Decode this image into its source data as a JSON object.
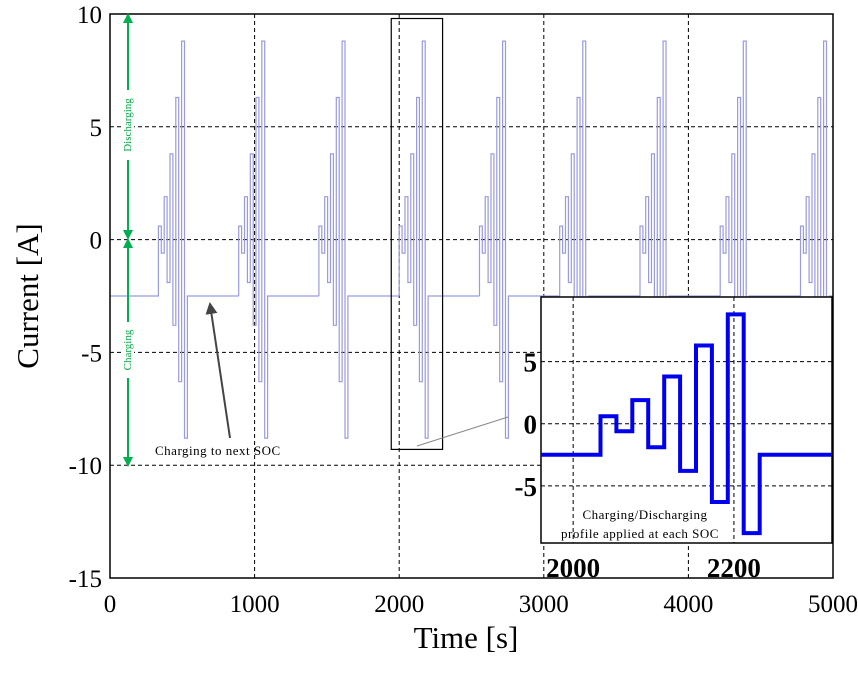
{
  "chart_data": [
    {
      "type": "line",
      "name": "main",
      "xlabel": "Time [s]",
      "ylabel": "Current [A]",
      "xlim": [
        0,
        5000
      ],
      "ylim": [
        -15,
        10
      ],
      "xticks": [
        0,
        1000,
        2000,
        3000,
        4000,
        5000
      ],
      "xtick_labels": [
        "0",
        "1000",
        "2000",
        "3000",
        "4000",
        "5000"
      ],
      "yticks": [
        10,
        5,
        0,
        -5,
        -10,
        -15
      ],
      "ytick_labels": [
        "10",
        "5",
        "0",
        "-5",
        "-10",
        "-15"
      ],
      "grid": true,
      "series_color": "#9a9ae0",
      "baseline_current": -2.5,
      "cycle_starts": [
        335,
        890,
        1445,
        2000,
        2555,
        3110,
        3665,
        4220,
        4775
      ],
      "step_duration": 20,
      "profile_levels": [
        0.6,
        -0.6,
        1.9,
        -1.9,
        3.8,
        -3.8,
        6.3,
        -6.3,
        8.8,
        -8.8
      ],
      "annotations": {
        "discharging": "Discharging",
        "charging": "Charging",
        "charging_next": "Charging to next SOC",
        "arrow_color": "#00b050"
      },
      "highlight_box": {
        "t": [
          1945,
          2300
        ],
        "current": [
          -9.3,
          9.8
        ]
      }
    },
    {
      "type": "line",
      "name": "inset",
      "xlim": [
        1960,
        2322
      ],
      "ylim": [
        -9.6,
        10.2
      ],
      "xticks": [
        2000,
        2200
      ],
      "xtick_labels": [
        "2000",
        "2200"
      ],
      "yticks": [
        5,
        0,
        -5
      ],
      "ytick_labels": [
        "5",
        "0",
        "-5"
      ],
      "grid": true,
      "series_color": "#0000ee",
      "baseline_current": -2.5,
      "profile_start": 2034,
      "step_duration": 19.8,
      "profile_levels": [
        0.6,
        -0.6,
        1.9,
        -1.9,
        3.8,
        -3.8,
        6.3,
        -6.3,
        8.8,
        -8.8
      ],
      "caption_line1": "Charging/Discharging",
      "caption_line2": "profile applied at each SOC"
    }
  ]
}
